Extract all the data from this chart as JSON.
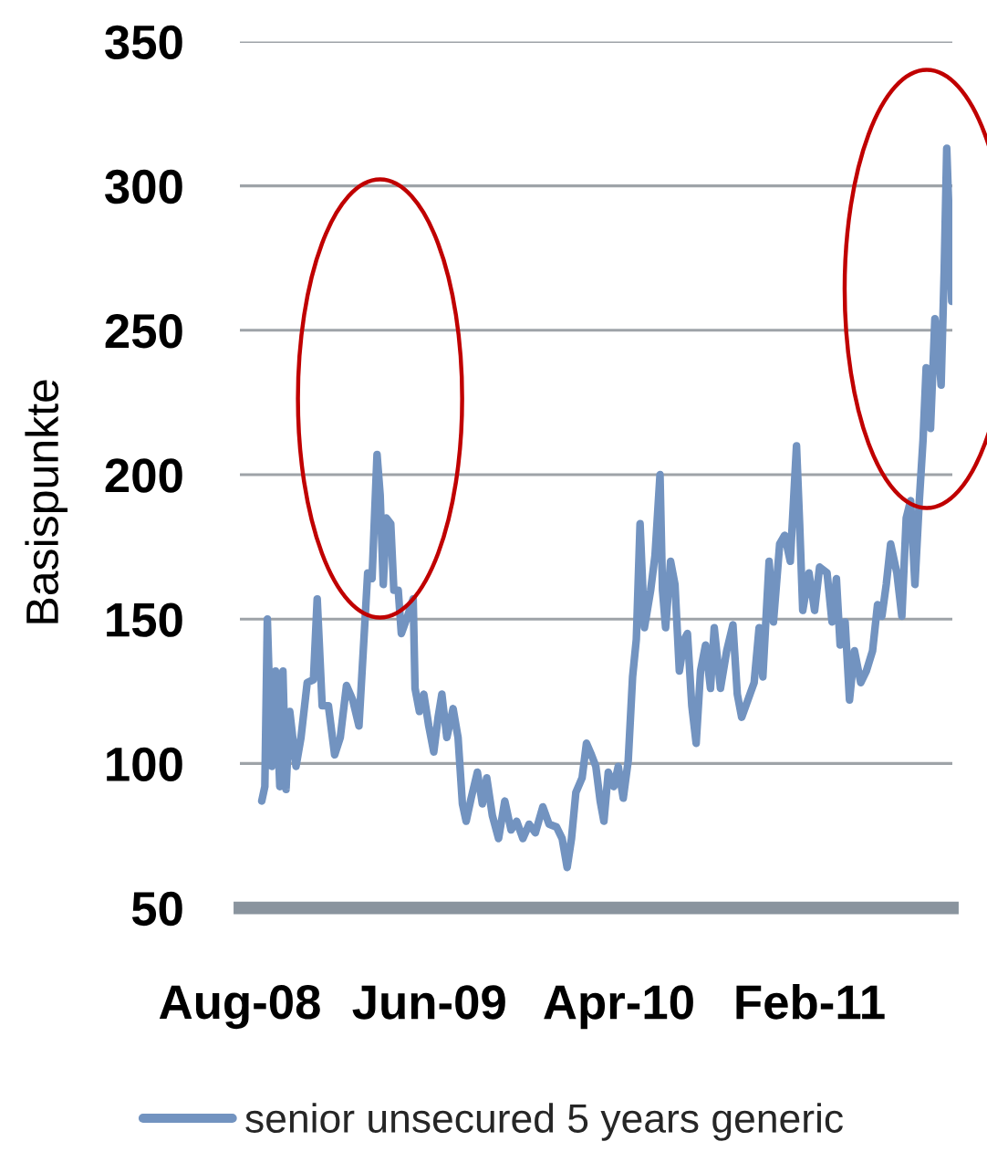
{
  "chart_data": {
    "type": "line",
    "ylabel": "Basispunkte",
    "x": [
      "2008-09-05",
      "2008-09-10",
      "2008-09-14",
      "2008-09-21",
      "2008-09-27",
      "2008-10-04",
      "2008-10-09",
      "2008-10-14",
      "2008-10-20",
      "2008-10-30",
      "2008-11-07",
      "2008-11-17",
      "2008-11-27",
      "2008-12-03",
      "2008-12-11",
      "2008-12-21",
      "2008-12-31",
      "2009-01-09",
      "2009-01-19",
      "2009-01-29",
      "2009-02-08",
      "2009-02-17",
      "2009-02-22",
      "2009-03-01",
      "2009-03-09",
      "2009-03-14",
      "2009-03-19",
      "2009-03-24",
      "2009-03-31",
      "2009-04-05",
      "2009-04-12",
      "2009-04-17",
      "2009-04-27",
      "2009-05-06",
      "2009-05-09",
      "2009-05-16",
      "2009-05-23",
      "2009-05-31",
      "2009-06-08",
      "2009-06-15",
      "2009-06-21",
      "2009-06-29",
      "2009-07-09",
      "2009-07-17",
      "2009-07-24",
      "2009-07-30",
      "2009-08-07",
      "2009-08-17",
      "2009-08-25",
      "2009-09-01",
      "2009-09-10",
      "2009-09-20",
      "2009-09-30",
      "2009-10-10",
      "2009-10-19",
      "2009-10-29",
      "2009-11-08",
      "2009-11-18",
      "2009-11-30",
      "2009-12-10",
      "2009-12-22",
      "2009-12-31",
      "2010-01-08",
      "2010-01-15",
      "2010-01-22",
      "2010-02-01",
      "2010-02-08",
      "2010-02-16",
      "2010-02-23",
      "2010-03-02",
      "2010-03-08",
      "2010-03-15",
      "2010-03-24",
      "2010-03-31",
      "2010-04-08",
      "2010-04-16",
      "2010-04-23",
      "2010-04-29",
      "2010-05-05",
      "2010-05-12",
      "2010-05-22",
      "2010-05-29",
      "2010-06-06",
      "2010-06-10",
      "2010-06-15",
      "2010-06-23",
      "2010-06-30",
      "2010-07-07",
      "2010-07-15",
      "2010-07-20",
      "2010-07-27",
      "2010-08-03",
      "2010-08-10",
      "2010-08-18",
      "2010-08-26",
      "2010-09-01",
      "2010-09-11",
      "2010-09-21",
      "2010-10-01",
      "2010-10-08",
      "2010-10-15",
      "2010-10-25",
      "2010-11-04",
      "2010-11-12",
      "2010-11-18",
      "2010-11-28",
      "2010-12-05",
      "2010-12-15",
      "2010-12-23",
      "2011-01-01",
      "2011-01-11",
      "2011-01-16",
      "2011-01-21",
      "2011-01-31",
      "2011-02-09",
      "2011-02-17",
      "2011-03-01",
      "2011-03-09",
      "2011-03-16",
      "2011-03-22",
      "2011-03-30",
      "2011-04-06",
      "2011-04-14",
      "2011-04-24",
      "2011-05-03",
      "2011-05-13",
      "2011-05-21",
      "2011-05-28",
      "2011-06-04",
      "2011-06-11",
      "2011-06-21",
      "2011-06-29",
      "2011-07-06",
      "2011-07-13",
      "2011-07-20",
      "2011-07-27",
      "2011-08-02",
      "2011-08-07",
      "2011-08-14",
      "2011-08-21",
      "2011-08-26",
      "2011-08-31",
      "2011-09-05",
      "2011-09-09",
      "2011-09-13",
      "2011-09-17"
    ],
    "series": [
      {
        "name": "senior unsecured 5 years generic",
        "color": "#7293c0",
        "values": [
          87,
          92,
          150,
          99,
          132,
          92,
          132,
          91,
          118,
          99,
          109,
          128,
          129,
          157,
          120,
          120,
          103,
          109,
          127,
          122,
          113,
          147,
          166,
          164,
          207,
          193,
          162,
          185,
          183,
          160,
          160,
          145,
          151,
          157,
          126,
          118,
          124,
          113,
          104,
          116,
          124,
          109,
          119,
          109,
          86,
          80,
          88,
          97,
          86,
          95,
          82,
          74,
          87,
          77,
          80,
          74,
          79,
          76,
          85,
          79,
          78,
          74,
          64,
          74,
          90,
          95,
          107,
          103,
          99,
          87,
          80,
          97,
          92,
          99,
          88,
          101,
          130,
          143,
          183,
          147,
          160,
          172,
          200,
          160,
          147,
          170,
          162,
          132,
          143,
          145,
          120,
          107,
          132,
          141,
          126,
          147,
          126,
          139,
          148,
          124,
          116,
          122,
          128,
          147,
          130,
          170,
          149,
          176,
          179,
          170,
          210,
          183,
          153,
          166,
          153,
          168,
          166,
          149,
          164,
          141,
          149,
          122,
          139,
          128,
          132,
          139,
          155,
          151,
          162,
          176,
          166,
          151,
          185,
          191,
          162,
          191,
          212,
          237,
          216,
          254,
          246,
          231,
          271,
          313,
          288,
          260
        ]
      }
    ],
    "xlim": [
      "2008-08-01",
      "2011-09-18"
    ],
    "xticks": [
      {
        "value": "2008-08-01",
        "label": "Aug-08"
      },
      {
        "value": "2009-06-01",
        "label": "Jun-09"
      },
      {
        "value": "2010-04-01",
        "label": "Apr-10"
      },
      {
        "value": "2011-02-01",
        "label": "Feb-11"
      }
    ],
    "ylim": [
      50,
      350
    ],
    "yticks": [
      50,
      100,
      150,
      200,
      250,
      300,
      350
    ],
    "grid": "y",
    "legend": "bottom",
    "line_style": "solid"
  }
}
